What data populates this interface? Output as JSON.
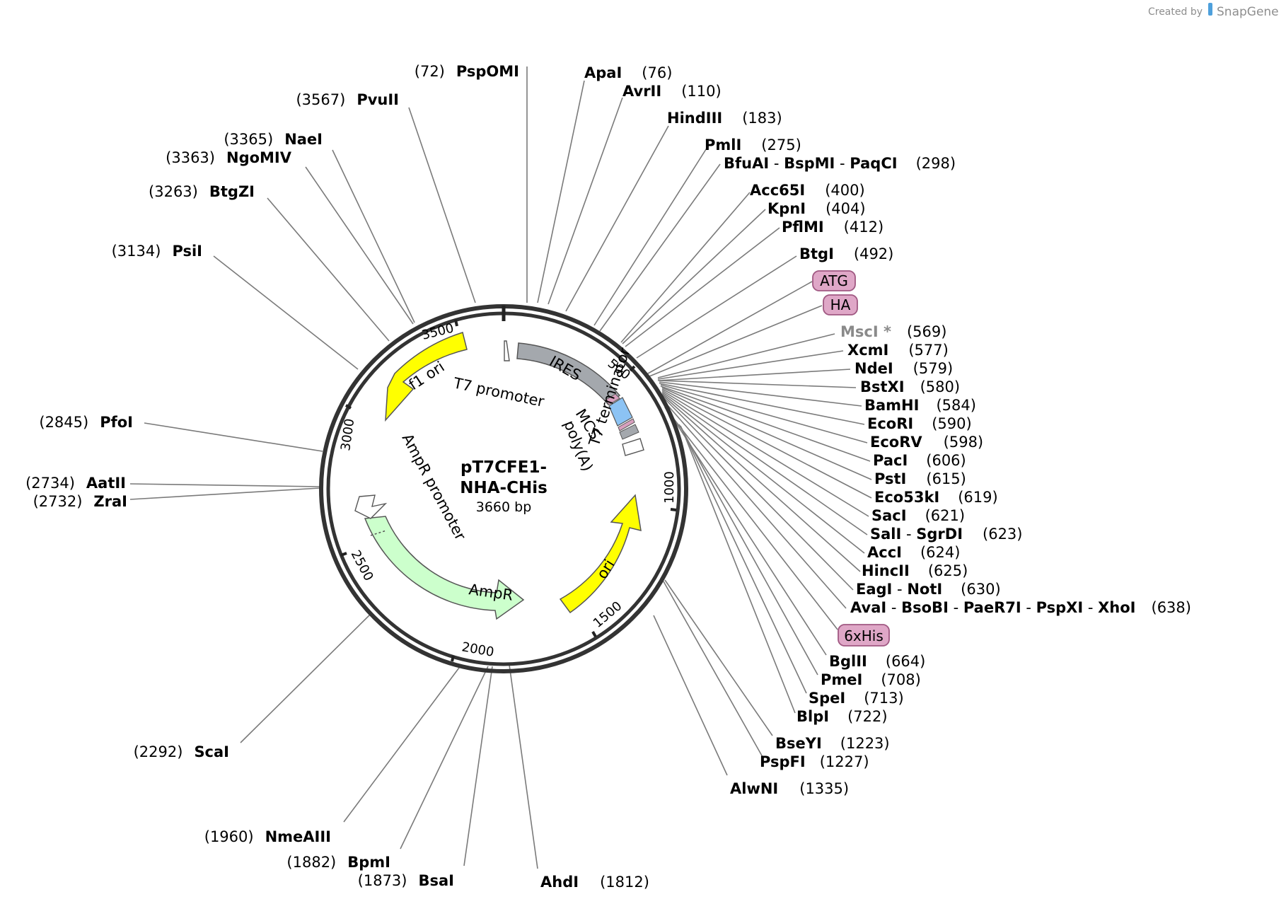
{
  "credit": {
    "prefix": "Created by",
    "brand": "SnapGene"
  },
  "plasmid": {
    "name_line1": "pT7CFE1-",
    "name_line2": "NHA-CHis",
    "size": "3660 bp"
  },
  "ticks": [
    "500",
    "1000",
    "1500",
    "2000",
    "2500",
    "3000",
    "3500"
  ],
  "features": {
    "ires": "IRES",
    "f1_ori": "f1 ori",
    "t7_promoter": "T7 promoter",
    "mcs": "MCS",
    "polya": "poly(A)",
    "t7_terminator": "T7 terminator",
    "ori": "ori",
    "ampr_promoter": "AmpR promoter",
    "ampr": "AmpR"
  },
  "tags": {
    "atg": "ATG",
    "ha": "HA",
    "his": "6xHis"
  },
  "sites": {
    "psp_omi": {
      "name": "PspOMI",
      "pos": "(72)"
    },
    "apai": {
      "name": "ApaI",
      "pos": "(76)"
    },
    "avrii": {
      "name": "AvrII",
      "pos": "(110)"
    },
    "hindiii": {
      "name": "HindIII",
      "pos": "(183)"
    },
    "pmli": {
      "name": "PmlI",
      "pos": "(275)"
    },
    "bfuai": {
      "name": "BfuAI",
      "name2": "BspMI",
      "name3": "PaqCI",
      "pos": "(298)"
    },
    "acc65i": {
      "name": "Acc65I",
      "pos": "(400)"
    },
    "kpni": {
      "name": "KpnI",
      "pos": "(404)"
    },
    "pflmi": {
      "name": "PflMI",
      "pos": "(412)"
    },
    "btgi": {
      "name": "BtgI",
      "pos": "(492)"
    },
    "msci": {
      "name": "MscI *",
      "pos": "(569)"
    },
    "xcmi": {
      "name": "XcmI",
      "pos": "(577)"
    },
    "ndei": {
      "name": "NdeI",
      "pos": "(579)"
    },
    "bstxi": {
      "name": "BstXI",
      "pos": "(580)"
    },
    "bamhi": {
      "name": "BamHI",
      "pos": "(584)"
    },
    "ecori": {
      "name": "EcoRI",
      "pos": "(590)"
    },
    "ecorv": {
      "name": "EcoRV",
      "pos": "(598)"
    },
    "paci": {
      "name": "PacI",
      "pos": "(606)"
    },
    "psti": {
      "name": "PstI",
      "pos": "(615)"
    },
    "eco53ki": {
      "name": "Eco53kI",
      "pos": "(619)"
    },
    "saci": {
      "name": "SacI",
      "pos": "(621)"
    },
    "sali": {
      "name": "SalI",
      "name2": "SgrDI",
      "pos": "(623)"
    },
    "acci": {
      "name": "AccI",
      "pos": "(624)"
    },
    "hincii": {
      "name": "HincII",
      "pos": "(625)"
    },
    "eagi": {
      "name": "EagI",
      "name2": "NotI",
      "pos": "(630)"
    },
    "avai": {
      "name": "AvaI",
      "name2": "BsoBI",
      "name3": "PaeR7I",
      "name4": "PspXI",
      "name5": "XhoI",
      "pos": "(638)"
    },
    "bglii": {
      "name": "BglII",
      "pos": "(664)"
    },
    "pmei": {
      "name": "PmeI",
      "pos": "(708)"
    },
    "spei": {
      "name": "SpeI",
      "pos": "(713)"
    },
    "blpi": {
      "name": "BlpI",
      "pos": "(722)"
    },
    "bseyi": {
      "name": "BseYI",
      "pos": "(1223)"
    },
    "pspfi": {
      "name": "PspFI",
      "pos": "(1227)"
    },
    "alwni": {
      "name": "AlwNI",
      "pos": "(1335)"
    },
    "ahdi": {
      "name": "AhdI",
      "pos": "(1812)"
    },
    "bsai": {
      "name": "BsaI",
      "pos": "(1873)"
    },
    "bpmi": {
      "name": "BpmI",
      "pos": "(1882)"
    },
    "nmeaiii": {
      "name": "NmeAIII",
      "pos": "(1960)"
    },
    "scai": {
      "name": "ScaI",
      "pos": "(2292)"
    },
    "zrai": {
      "name": "ZraI",
      "pos": "(2732)"
    },
    "aatii": {
      "name": "AatII",
      "pos": "(2734)"
    },
    "pfoi": {
      "name": "PfoI",
      "pos": "(2845)"
    },
    "psii": {
      "name": "PsiI",
      "pos": "(3134)"
    },
    "btgzi": {
      "name": "BtgZI",
      "pos": "(3263)"
    },
    "ngomiv": {
      "name": "NgoMIV",
      "pos": "(3363)"
    },
    "naei": {
      "name": "NaeI",
      "pos": "(3365)"
    },
    "pvuii": {
      "name": "PvuII",
      "pos": "(3567)"
    }
  }
}
